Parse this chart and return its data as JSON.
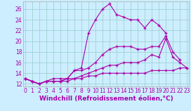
{
  "xlabel": "Windchill (Refroidissement éolien,°C)",
  "bg_color": "#cceeff",
  "line_color": "#aa00aa",
  "grid_color": "#99cccc",
  "xmin": 0,
  "xmax": 23,
  "ymin": 11.5,
  "ymax": 27.5,
  "yticks": [
    12,
    14,
    16,
    18,
    20,
    22,
    24,
    26
  ],
  "xticks": [
    0,
    1,
    2,
    3,
    4,
    5,
    6,
    7,
    8,
    9,
    10,
    11,
    12,
    13,
    14,
    15,
    16,
    17,
    18,
    19,
    20,
    21,
    22,
    23
  ],
  "line1_y": [
    13.0,
    12.5,
    12.0,
    12.5,
    12.5,
    12.5,
    13.0,
    14.5,
    15.0,
    21.5,
    24.0,
    26.0,
    27.0,
    25.0,
    24.5,
    24.0,
    24.0,
    22.5,
    24.0,
    23.0,
    21.5,
    null,
    null,
    null
  ],
  "line2_y": [
    13.0,
    12.5,
    12.0,
    12.5,
    13.0,
    13.0,
    13.0,
    14.5,
    14.5,
    15.0,
    16.0,
    17.5,
    18.5,
    19.0,
    19.0,
    19.0,
    18.5,
    18.5,
    19.0,
    19.0,
    21.0,
    18.0,
    16.5,
    null
  ],
  "line3_y": [
    13.0,
    12.5,
    12.0,
    12.5,
    12.5,
    12.5,
    13.0,
    13.0,
    13.5,
    14.0,
    14.5,
    15.0,
    15.5,
    15.5,
    16.0,
    16.0,
    16.0,
    16.5,
    17.5,
    17.0,
    20.5,
    17.0,
    16.0,
    15.0
  ],
  "line4_y": [
    13.0,
    12.5,
    12.0,
    12.5,
    12.5,
    12.5,
    12.5,
    13.0,
    13.0,
    13.5,
    13.5,
    14.0,
    14.0,
    14.0,
    14.0,
    14.0,
    14.0,
    14.0,
    14.5,
    14.5,
    14.5,
    14.5,
    15.0,
    15.0
  ],
  "label_fontsize": 6.5,
  "tick_fontsize": 5.5
}
